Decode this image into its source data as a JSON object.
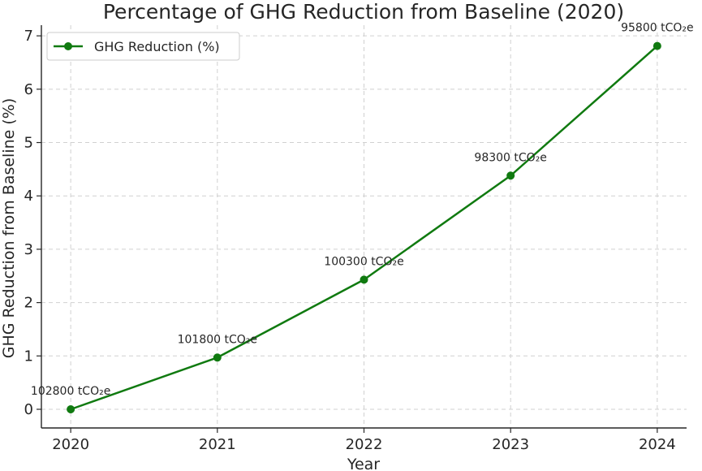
{
  "chart_data": {
    "type": "line",
    "title": "Percentage of GHG Reduction from Baseline (2020)",
    "xlabel": "Year",
    "ylabel": "GHG Reduction from Baseline (%)",
    "x": [
      2020,
      2021,
      2022,
      2023,
      2024
    ],
    "series": [
      {
        "name": "GHG Reduction (%)",
        "values": [
          0.0,
          0.97,
          2.43,
          4.38,
          6.81
        ],
        "color": "#107a10",
        "marker": "circle"
      }
    ],
    "annotations": [
      "102800 tCO₂e",
      "101800 tCO₂e",
      "100300 tCO₂e",
      "98300 tCO₂e",
      "95800 tCO₂e"
    ],
    "xticks": [
      "2020",
      "2021",
      "2022",
      "2023",
      "2024"
    ],
    "yticks": [
      "0",
      "1",
      "2",
      "3",
      "4",
      "5",
      "6",
      "7"
    ],
    "ylim": [
      -0.35,
      7.2
    ],
    "xlim": [
      2019.8,
      2024.2
    ],
    "grid": true,
    "legend_position": "top-left"
  }
}
